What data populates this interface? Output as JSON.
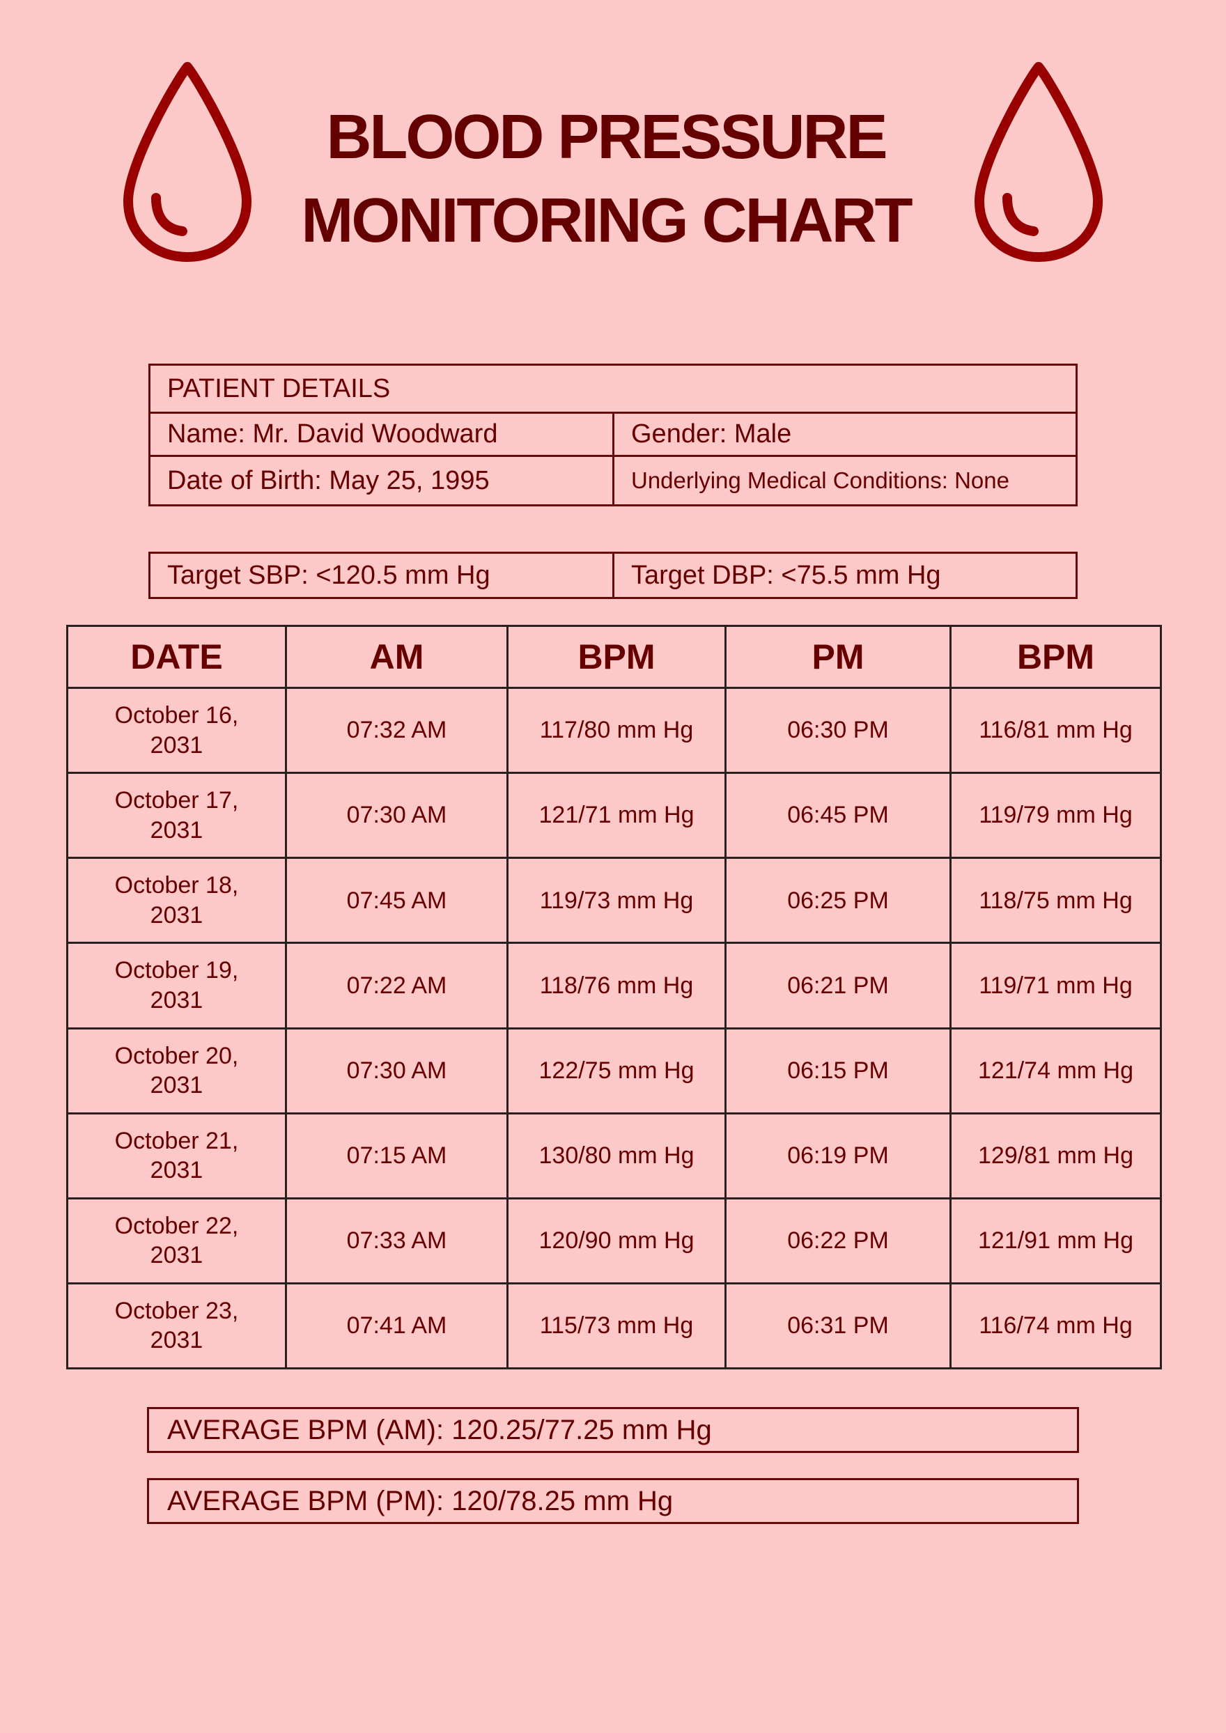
{
  "header": {
    "title_line1": "BLOOD PRESSURE",
    "title_line2": "MONITORING CHART",
    "icon": "blood-drop-icon",
    "icon_color": "#990000"
  },
  "patient": {
    "heading": "PATIENT DETAILS",
    "name": "Name: Mr. David Woodward",
    "gender": "Gender: Male",
    "dob": "Date of Birth: May 25, 1995",
    "conditions": "Underlying Medical Conditions: None"
  },
  "targets": {
    "sbp": "Target SBP: <120.5 mm Hg",
    "dbp": "Target DBP: <75.5 mm Hg"
  },
  "table": {
    "headers": [
      "DATE",
      "AM",
      "BPM",
      "PM",
      "BPM"
    ],
    "rows": [
      {
        "date_line1": "October 16,",
        "date_line2": "2031",
        "am": "07:32 AM",
        "am_bpm": "117/80 mm Hg",
        "pm": "06:30 PM",
        "pm_bpm": "116/81 mm Hg"
      },
      {
        "date_line1": "October 17,",
        "date_line2": "2031",
        "am": "07:30 AM",
        "am_bpm": "121/71 mm Hg",
        "pm": "06:45 PM",
        "pm_bpm": "119/79 mm Hg"
      },
      {
        "date_line1": "October 18,",
        "date_line2": "2031",
        "am": "07:45 AM",
        "am_bpm": "119/73 mm Hg",
        "pm": "06:25 PM",
        "pm_bpm": "118/75 mm Hg"
      },
      {
        "date_line1": "October 19,",
        "date_line2": "2031",
        "am": "07:22 AM",
        "am_bpm": "118/76 mm Hg",
        "pm": "06:21 PM",
        "pm_bpm": "119/71 mm Hg"
      },
      {
        "date_line1": "October 20,",
        "date_line2": "2031",
        "am": "07:30 AM",
        "am_bpm": "122/75 mm Hg",
        "pm": "06:15 PM",
        "pm_bpm": "121/74 mm Hg"
      },
      {
        "date_line1": "October 21,",
        "date_line2": "2031",
        "am": "07:15 AM",
        "am_bpm": "130/80 mm Hg",
        "pm": "06:19 PM",
        "pm_bpm": "129/81 mm Hg"
      },
      {
        "date_line1": "October 22,",
        "date_line2": "2031",
        "am": "07:33 AM",
        "am_bpm": "120/90 mm Hg",
        "pm": "06:22 PM",
        "pm_bpm": "121/91 mm Hg"
      },
      {
        "date_line1": "October 23,",
        "date_line2": "2031",
        "am": "07:41 AM",
        "am_bpm": "115/73 mm Hg",
        "pm": "06:31 PM",
        "pm_bpm": "116/74 mm Hg"
      }
    ]
  },
  "averages": {
    "am": "AVERAGE BPM (AM): 120.25/77.25 mm Hg",
    "pm": "AVERAGE BPM (PM): 120/78.25 mm Hg"
  }
}
